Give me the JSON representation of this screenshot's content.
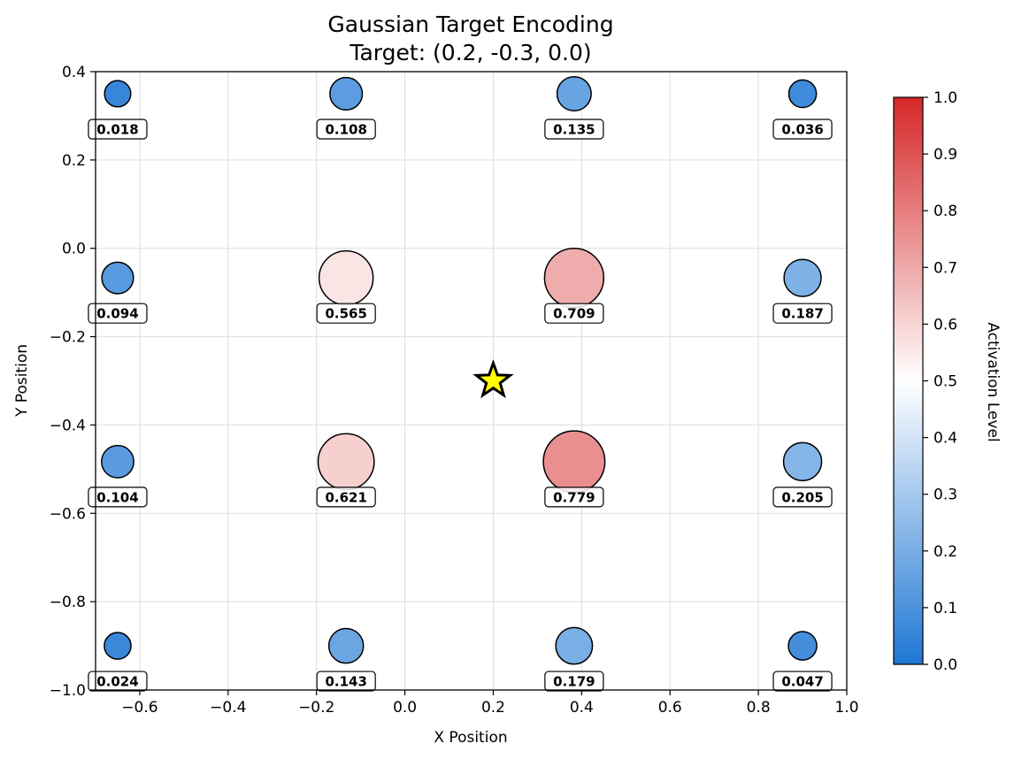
{
  "chart_data": {
    "type": "scatter",
    "title": "Gaussian Target Encoding",
    "subtitle": "Target: (0.2, -0.3, 0.0)",
    "xlabel": "X Position",
    "ylabel": "Y Position",
    "xlim": [
      -0.7,
      1.0
    ],
    "ylim": [
      -1.0,
      0.4
    ],
    "xticks": [
      -0.6,
      -0.4,
      -0.2,
      0.0,
      0.2,
      0.4,
      0.6,
      0.8,
      1.0
    ],
    "xtick_labels": [
      "−0.6",
      "−0.4",
      "−0.2",
      "0.0",
      "0.2",
      "0.4",
      "0.6",
      "0.8",
      "1.0"
    ],
    "yticks": [
      0.4,
      0.2,
      0.0,
      -0.2,
      -0.4,
      -0.6,
      -0.8,
      -1.0
    ],
    "ytick_labels": [
      "0.4",
      "0.2",
      "0.0",
      "−0.2",
      "−0.4",
      "−0.6",
      "−0.8",
      "−1.0"
    ],
    "grid": true,
    "target": {
      "x": 0.2,
      "y": -0.3,
      "marker": "star",
      "color": "#ffff00"
    },
    "points": [
      {
        "x": -0.65,
        "y": 0.35,
        "value": 0.018,
        "label": "0.018"
      },
      {
        "x": -0.133,
        "y": 0.35,
        "value": 0.108,
        "label": "0.108"
      },
      {
        "x": 0.383,
        "y": 0.35,
        "value": 0.135,
        "label": "0.135"
      },
      {
        "x": 0.9,
        "y": 0.35,
        "value": 0.036,
        "label": "0.036"
      },
      {
        "x": -0.65,
        "y": -0.067,
        "value": 0.094,
        "label": "0.094"
      },
      {
        "x": -0.133,
        "y": -0.067,
        "value": 0.565,
        "label": "0.565"
      },
      {
        "x": 0.383,
        "y": -0.067,
        "value": 0.709,
        "label": "0.709"
      },
      {
        "x": 0.9,
        "y": -0.067,
        "value": 0.187,
        "label": "0.187"
      },
      {
        "x": -0.65,
        "y": -0.483,
        "value": 0.104,
        "label": "0.104"
      },
      {
        "x": -0.133,
        "y": -0.483,
        "value": 0.621,
        "label": "0.621"
      },
      {
        "x": 0.383,
        "y": -0.483,
        "value": 0.779,
        "label": "0.779"
      },
      {
        "x": 0.9,
        "y": -0.483,
        "value": 0.205,
        "label": "0.205"
      },
      {
        "x": -0.65,
        "y": -0.9,
        "value": 0.024,
        "label": "0.024"
      },
      {
        "x": -0.133,
        "y": -0.9,
        "value": 0.143,
        "label": "0.143"
      },
      {
        "x": 0.383,
        "y": -0.9,
        "value": 0.179,
        "label": "0.179"
      },
      {
        "x": 0.9,
        "y": -0.9,
        "value": 0.047,
        "label": "0.047"
      }
    ],
    "colorbar": {
      "label": "Activation Level",
      "range": [
        0.0,
        1.0
      ],
      "ticks": [
        "0.0",
        "0.1",
        "0.2",
        "0.3",
        "0.4",
        "0.5",
        "0.6",
        "0.7",
        "0.8",
        "0.9",
        "1.0"
      ],
      "colors": [
        "#1f77d4",
        "#ffffff",
        "#d62728"
      ]
    }
  }
}
